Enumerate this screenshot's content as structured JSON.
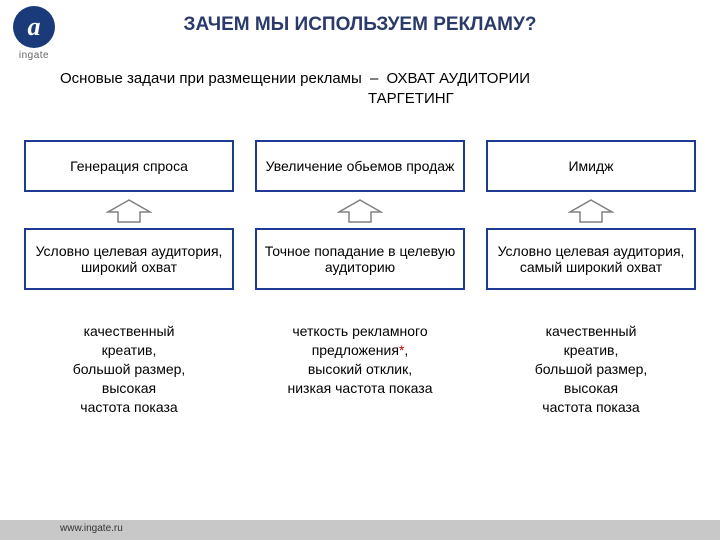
{
  "logo": {
    "glyph": "a",
    "label": "ingate"
  },
  "title": {
    "text": "ЗАЧЕМ МЫ ИСПОЛЬЗУЕМ РЕКЛАМУ?",
    "color": "#2a3a6a",
    "fontsize": 19
  },
  "subtitle": {
    "lead": "Основые задачи при размещении рекламы",
    "dash": "–",
    "item1": "ОХВАТ АУДИТОРИИ",
    "item2": "ТАРГЕТИНГ",
    "fontsize": 15,
    "color": "#000000"
  },
  "diagram": {
    "box_border_color": "#1f3a93",
    "box_border_width": 2,
    "box_fontsize": 14,
    "arrow_stroke": "#808080",
    "arrow_fill": "#ffffff",
    "row1_height": 52,
    "row2_height": 62,
    "plain_fontsize": 14,
    "columns": [
      {
        "row1": "Генерация спроса",
        "row2": "Условно целевая аудитория, широкий охват",
        "plain_lines": [
          "качественный",
          "креатив,",
          "большой размер,",
          "высокая",
          "частота показа"
        ],
        "star_after_line": -1
      },
      {
        "row1": "Увеличение обьемов продаж",
        "row2": "Точное попадание в целевую аудиторию",
        "plain_lines": [
          "четкость рекламного",
          "предложения",
          ",",
          "высокий отклик,",
          "низкая частота показа"
        ],
        "star_after_line": 1
      },
      {
        "row1": "Имидж",
        "row2": "Условно целевая аудитория, самый широкий охват",
        "plain_lines": [
          "качественный",
          "креатив,",
          "большой размер,",
          "высокая",
          "частота показа"
        ],
        "star_after_line": -1
      }
    ]
  },
  "footer": {
    "url": "www.ingate.ru",
    "bg": "#c8c8c8",
    "color": "#333333",
    "fontsize": 10
  }
}
